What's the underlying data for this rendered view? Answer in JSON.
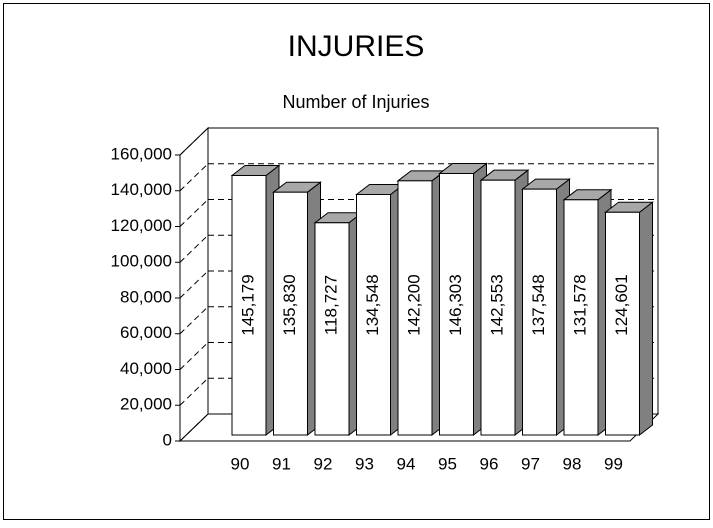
{
  "chart_data": {
    "type": "bar",
    "title": "INJURIES",
    "subtitle": "Number of Injuries",
    "categories": [
      "90",
      "91",
      "92",
      "93",
      "94",
      "95",
      "96",
      "97",
      "98",
      "99"
    ],
    "values": [
      145179,
      135830,
      118727,
      134548,
      142200,
      146303,
      142553,
      137548,
      131578,
      124601
    ],
    "value_labels": [
      "145,179",
      "135,830",
      "118,727",
      "134,548",
      "142,200",
      "146,303",
      "142,553",
      "137,548",
      "131,578",
      "124,601"
    ],
    "color": "#ffffff",
    "ylim": [
      0,
      160000
    ],
    "yticks": [
      {
        "value": 0,
        "label": "0"
      },
      {
        "value": 20000,
        "label": "20,000"
      },
      {
        "value": 40000,
        "label": "40,000"
      },
      {
        "value": 60000,
        "label": "60,000"
      },
      {
        "value": 80000,
        "label": "80,000"
      },
      {
        "value": 100000,
        "label": "100,000"
      },
      {
        "value": 120000,
        "label": "120,000"
      },
      {
        "value": 140000,
        "label": "140,000"
      },
      {
        "value": 160000,
        "label": "160,000"
      }
    ],
    "grid": true
  }
}
